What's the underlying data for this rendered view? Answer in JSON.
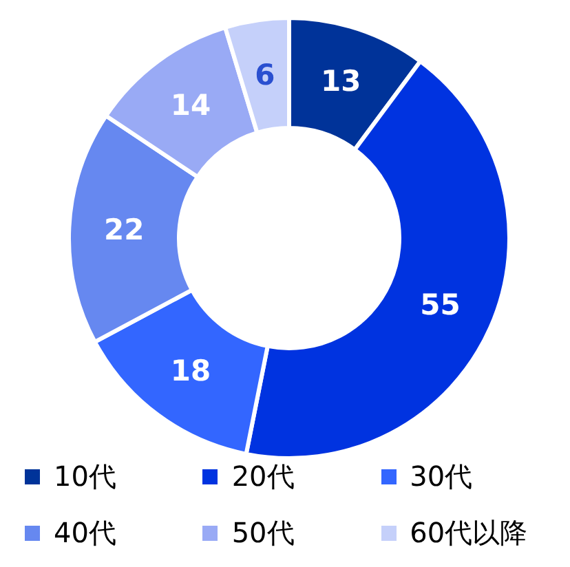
{
  "chart_data": {
    "type": "donut",
    "categories": [
      "10代",
      "20代",
      "30代",
      "40代",
      "50代",
      "60代以降"
    ],
    "values": [
      13,
      55,
      18,
      22,
      14,
      6
    ],
    "colors": [
      "#003399",
      "#0033e0",
      "#3366ff",
      "#6688f0",
      "#99aaf5",
      "#c5d0fa"
    ],
    "data_labels": true,
    "legend": "bottom"
  }
}
